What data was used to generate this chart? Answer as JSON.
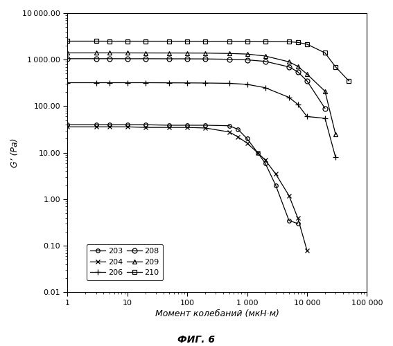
{
  "xlabel": "Момент колебаний (мкН·м)",
  "ylabel": "G’ (Pa)",
  "fig_label": "ФИГ. 6",
  "xlim": [
    1,
    100000
  ],
  "ylim": [
    0.01,
    10000
  ],
  "series": {
    "203": {
      "marker": "o",
      "markersize": 4,
      "fillstyle": "none",
      "x": [
        1,
        3,
        5,
        10,
        20,
        50,
        100,
        200,
        500,
        700,
        1000,
        1500,
        2000,
        3000,
        5000,
        7000
      ],
      "y": [
        40,
        40,
        40,
        40,
        40,
        39,
        39,
        39,
        38,
        32,
        20,
        10,
        6,
        2,
        0.35,
        0.3
      ]
    },
    "204": {
      "marker": "x",
      "markersize": 5,
      "fillstyle": "full",
      "x": [
        1,
        3,
        5,
        10,
        20,
        50,
        100,
        200,
        500,
        700,
        1000,
        1500,
        2000,
        3000,
        5000,
        7000,
        10000
      ],
      "y": [
        36,
        36,
        36,
        36,
        35,
        35,
        35,
        34,
        28,
        22,
        16,
        10,
        7,
        3.5,
        1.2,
        0.4,
        0.08
      ]
    },
    "206": {
      "marker": "+",
      "markersize": 6,
      "fillstyle": "full",
      "x": [
        1,
        3,
        5,
        10,
        20,
        50,
        100,
        200,
        500,
        1000,
        2000,
        5000,
        7000,
        10000,
        20000,
        30000,
        50000,
        70000,
        100000
      ],
      "y": [
        320,
        320,
        320,
        320,
        320,
        318,
        317,
        315,
        310,
        295,
        250,
        155,
        110,
        60,
        55,
        8,
        null,
        null,
        null
      ]
    },
    "208": {
      "marker": "o",
      "markersize": 5,
      "fillstyle": "none",
      "x": [
        1,
        3,
        5,
        10,
        20,
        50,
        100,
        200,
        500,
        1000,
        2000,
        5000,
        7000,
        10000,
        20000,
        30000,
        50000,
        70000,
        100000
      ],
      "y": [
        1050,
        1050,
        1050,
        1048,
        1048,
        1045,
        1042,
        1038,
        1020,
        990,
        920,
        700,
        550,
        350,
        90,
        null,
        null,
        null,
        null
      ]
    },
    "209": {
      "marker": "^",
      "markersize": 4,
      "fillstyle": "none",
      "x": [
        1,
        3,
        5,
        10,
        20,
        50,
        100,
        200,
        500,
        1000,
        2000,
        5000,
        7000,
        10000,
        20000,
        30000,
        50000,
        70000,
        100000
      ],
      "y": [
        1400,
        1400,
        1400,
        1398,
        1395,
        1392,
        1390,
        1385,
        1360,
        1320,
        1200,
        900,
        720,
        490,
        210,
        25,
        null,
        null,
        null
      ]
    },
    "210": {
      "marker": "s",
      "markersize": 4,
      "fillstyle": "none",
      "x": [
        1,
        3,
        5,
        10,
        20,
        50,
        100,
        200,
        500,
        1000,
        2000,
        5000,
        7000,
        10000,
        20000,
        30000,
        50000,
        70000,
        100000
      ],
      "y": [
        2500,
        2500,
        2495,
        2495,
        2495,
        2493,
        2492,
        2490,
        2490,
        2488,
        2480,
        2430,
        2350,
        2150,
        1400,
        700,
        350,
        null,
        null
      ]
    }
  },
  "legend_order": [
    "203",
    "204",
    "206",
    "208",
    "209",
    "210"
  ],
  "legend_labels": {
    "203": "203",
    "204": "204",
    "206": "206",
    "208": "208",
    "209": "209",
    "210": "210"
  }
}
